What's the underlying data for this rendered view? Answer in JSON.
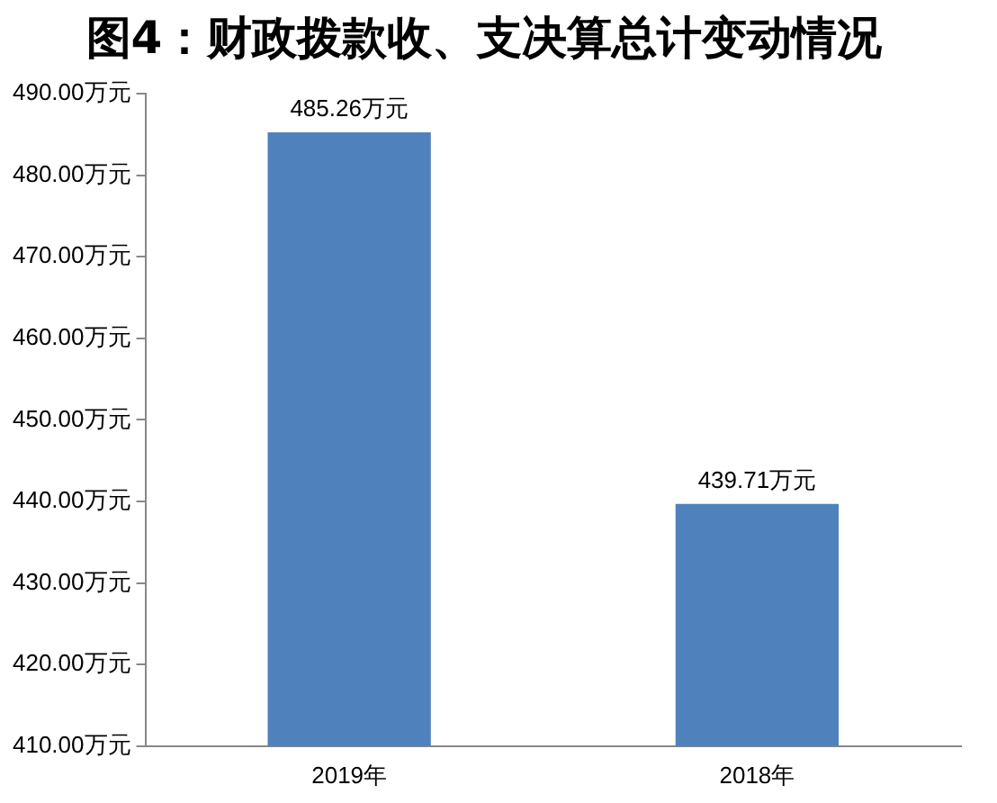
{
  "chart_data": {
    "type": "bar",
    "title": "图4：财政拨款收、支决算总计变动情况",
    "categories": [
      "2019年",
      "2018年"
    ],
    "values": [
      485.26,
      439.71
    ],
    "color": "#4f81bd",
    "value_labels": [
      "485.26万元",
      "439.71万元"
    ],
    "ylim": [
      410,
      490
    ],
    "yticks": [
      {
        "value": 410,
        "label": "410.00万元"
      },
      {
        "value": 420,
        "label": "420.00万元"
      },
      {
        "value": 430,
        "label": "430.00万元"
      },
      {
        "value": 440,
        "label": "440.00万元"
      },
      {
        "value": 450,
        "label": "450.00万元"
      },
      {
        "value": 460,
        "label": "460.00万元"
      },
      {
        "value": 470,
        "label": "470.00万元"
      },
      {
        "value": 480,
        "label": "480.00万元"
      },
      {
        "value": 490,
        "label": "490.00万元"
      }
    ],
    "grid": false,
    "legend": false
  }
}
